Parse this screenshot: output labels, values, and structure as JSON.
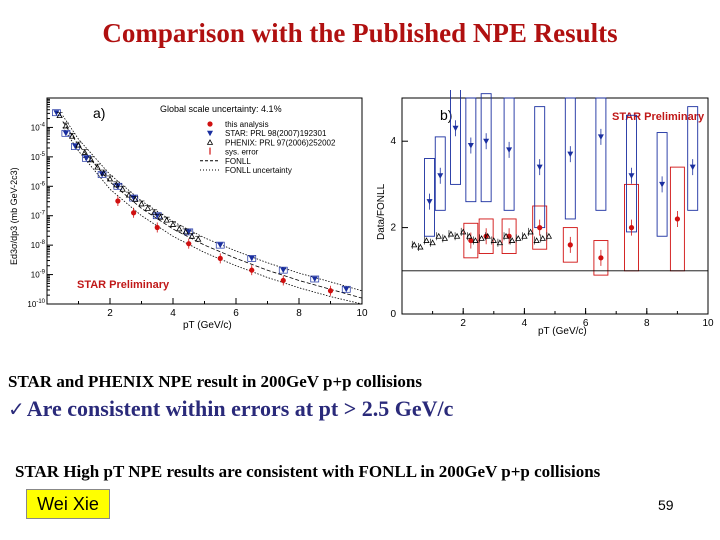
{
  "slide": {
    "title": "Comparison with the Published NPE Results",
    "line1": "STAR and PHENIX NPE result in 200GeV p+p collisions",
    "line2_check": "ü",
    "line2": "Are consistent within errors at pt > 2.5 GeV/c",
    "line3": "STAR High pT NPE results are consistent with FONLL in 200GeV p+p collisions",
    "author": "Wei Xie",
    "page_number": "59"
  },
  "chart_data": [
    {
      "type": "scatter",
      "panel_label": "a)",
      "scale_note": "Global scale uncertainty: 4.1%",
      "watermark": "STAR Preliminary",
      "xlabel": "pT (GeV/c)",
      "ylabel": "Ed3σ/dp3 (mb GeV-2c3)",
      "xlim": [
        0,
        10
      ],
      "ylim_log10": [
        -10,
        -3
      ],
      "x_ticks": [
        "2",
        "4",
        "6",
        "8",
        "10"
      ],
      "y_ticks": [
        "10-4",
        "10-5",
        "10-6",
        "10-7",
        "10-8",
        "10-9",
        "10-10"
      ],
      "legend_position": "top-right",
      "legend": [
        "this analysis",
        "STAR: PRL 98(2007)192301",
        "PHENIX: PRL 97(2006)252002",
        "sys. error",
        "FONLL",
        "FONLL uncertainty"
      ],
      "series": [
        {
          "name": "this analysis",
          "color": "#d01010",
          "x": [
            2.25,
            2.75,
            3.5,
            4.5,
            5.5,
            6.5,
            7.5,
            9.0
          ],
          "log10_y": [
            -6.5,
            -6.9,
            -7.4,
            -7.95,
            -8.45,
            -8.85,
            -9.2,
            -9.55
          ]
        },
        {
          "name": "STAR: PRL 98(2007)192301",
          "color": "#1a2fa0",
          "x": [
            0.3,
            0.6,
            0.9,
            1.25,
            1.75,
            2.25,
            2.75,
            3.5,
            4.5,
            5.5,
            6.5,
            7.5,
            8.5,
            9.5
          ],
          "log10_y": [
            -3.5,
            -4.2,
            -4.65,
            -5.05,
            -5.6,
            -6.0,
            -6.4,
            -7.0,
            -7.55,
            -8.0,
            -8.45,
            -8.85,
            -9.15,
            -9.5
          ]
        },
        {
          "name": "PHENIX: PRL 97(2006)252002",
          "color": "#000000",
          "x": [
            0.4,
            0.6,
            0.8,
            1.0,
            1.2,
            1.4,
            1.6,
            1.8,
            2.0,
            2.2,
            2.4,
            2.6,
            2.8,
            3.0,
            3.2,
            3.4,
            3.6,
            3.8,
            4.0,
            4.2,
            4.4,
            4.6,
            4.8
          ],
          "log10_y": [
            -3.6,
            -3.95,
            -4.3,
            -4.6,
            -4.85,
            -5.1,
            -5.35,
            -5.55,
            -5.75,
            -5.95,
            -6.1,
            -6.3,
            -6.45,
            -6.6,
            -6.75,
            -6.9,
            -7.05,
            -7.15,
            -7.3,
            -7.45,
            -7.55,
            -7.7,
            -7.8
          ]
        },
        {
          "name": "FONLL",
          "x": [
            0.5,
            1,
            2,
            3,
            4,
            5,
            6,
            7,
            8,
            9,
            10
          ],
          "log10_y": [
            -3.8,
            -4.6,
            -5.85,
            -6.75,
            -7.45,
            -8.0,
            -8.45,
            -8.85,
            -9.2,
            -9.5,
            -9.8
          ]
        },
        {
          "name": "FONLL uncertainty upper",
          "x": [
            0.5,
            1,
            2,
            3,
            4,
            5,
            6,
            7,
            8,
            9,
            10
          ],
          "log10_y": [
            -3.6,
            -4.4,
            -5.6,
            -6.5,
            -7.2,
            -7.75,
            -8.2,
            -8.6,
            -8.95,
            -9.25,
            -9.55
          ]
        },
        {
          "name": "FONLL uncertainty lower",
          "x": [
            0.5,
            1,
            2,
            3,
            4,
            5,
            6,
            7,
            8,
            9,
            10
          ],
          "log10_y": [
            -4.0,
            -4.8,
            -6.1,
            -7.0,
            -7.7,
            -8.25,
            -8.7,
            -9.1,
            -9.45,
            -9.75,
            -10.0
          ]
        }
      ]
    },
    {
      "type": "scatter",
      "panel_label": "b)",
      "watermark": "STAR Preliminary",
      "xlabel": "pT (GeV/c)",
      "ylabel": "Data/FONLL",
      "xlim": [
        0,
        10
      ],
      "ylim": [
        0,
        5
      ],
      "x_ticks": [
        "2",
        "4",
        "6",
        "8",
        "10"
      ],
      "y_ticks": [
        "0",
        "2",
        "4"
      ],
      "reference_line": 1,
      "series": [
        {
          "name": "this analysis",
          "color": "#d01010",
          "x": [
            2.25,
            2.75,
            3.5,
            4.5,
            5.5,
            6.5,
            7.5,
            9.0
          ],
          "y": [
            1.7,
            1.8,
            1.8,
            2.0,
            1.6,
            1.3,
            2.0,
            2.2
          ],
          "box_lo": [
            1.3,
            1.4,
            1.4,
            1.5,
            1.2,
            0.9,
            1.0,
            1.0
          ],
          "box_hi": [
            2.1,
            2.2,
            2.2,
            2.5,
            2.0,
            1.7,
            3.0,
            3.4
          ]
        },
        {
          "name": "STAR: PRL 98(2007)192301",
          "color": "#1a2fa0",
          "x": [
            0.9,
            1.25,
            1.75,
            2.25,
            2.75,
            3.5,
            4.5,
            5.5,
            6.5,
            7.5,
            8.5,
            9.5
          ],
          "y": [
            2.6,
            3.2,
            4.3,
            3.9,
            4.0,
            3.8,
            3.4,
            3.7,
            4.1,
            3.2,
            3.0,
            3.4
          ],
          "box_lo": [
            1.8,
            2.4,
            3.0,
            2.6,
            2.6,
            2.4,
            2.0,
            2.2,
            2.4,
            1.9,
            1.8,
            2.4
          ],
          "box_hi": [
            3.6,
            4.1,
            5.2,
            5.0,
            5.1,
            5.0,
            4.8,
            5.0,
            5.0,
            4.6,
            4.2,
            4.8
          ]
        },
        {
          "name": "PHENIX: PRL 97(2006)252002",
          "color": "#000000",
          "x": [
            0.4,
            0.6,
            0.8,
            1.0,
            1.2,
            1.4,
            1.6,
            1.8,
            2.0,
            2.2,
            2.4,
            2.6,
            2.8,
            3.0,
            3.2,
            3.4,
            3.6,
            3.8,
            4.0,
            4.2,
            4.4,
            4.6,
            4.8
          ],
          "y": [
            1.6,
            1.55,
            1.7,
            1.65,
            1.8,
            1.75,
            1.85,
            1.8,
            1.9,
            1.8,
            1.7,
            1.75,
            1.8,
            1.7,
            1.65,
            1.8,
            1.7,
            1.75,
            1.8,
            1.9,
            1.7,
            1.75,
            1.8
          ]
        }
      ]
    }
  ]
}
